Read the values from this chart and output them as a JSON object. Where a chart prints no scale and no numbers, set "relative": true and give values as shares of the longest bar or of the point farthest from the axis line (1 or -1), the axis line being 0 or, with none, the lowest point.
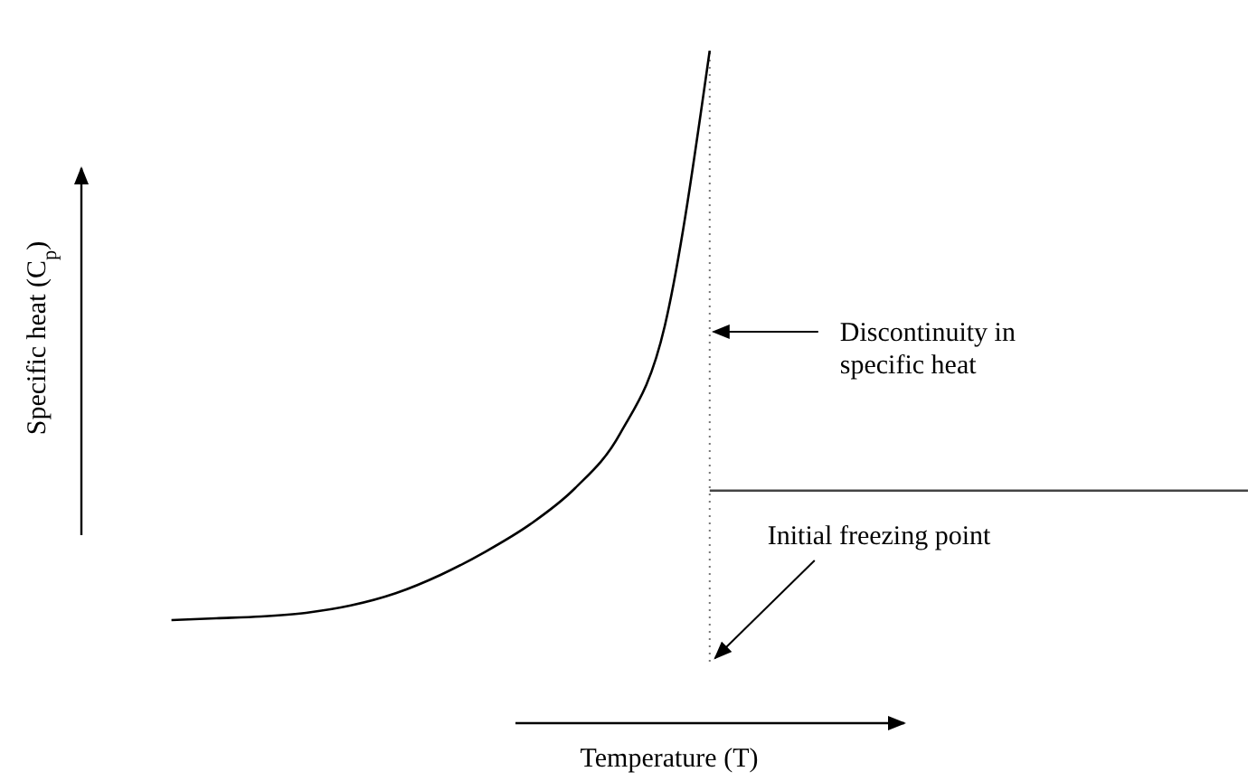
{
  "chart_data": {
    "type": "line",
    "relative": true,
    "xlabel": "Temperature (T)",
    "ylabel": "Specific heat (C$_{p}$)",
    "categories": [
      null,
      null,
      null,
      null,
      null,
      null,
      null,
      null,
      null,
      null,
      null,
      null,
      null,
      null,
      null,
      null,
      null,
      null,
      null,
      null,
      null,
      null,
      null,
      null,
      null,
      null
    ],
    "series": [
      {
        "color": "#000000",
        "values": [
          null,
          0.068,
          0.071,
          0.074,
          0.08,
          0.092,
          0.112,
          0.142,
          0.18,
          0.225,
          0.284,
          0.373,
          0.55,
          1,
          null,
          null,
          null,
          null,
          null,
          null,
          null,
          null,
          null,
          null,
          null,
          null
        ]
      },
      {
        "color": "#444444",
        "values": [
          null,
          null,
          null,
          null,
          null,
          null,
          null,
          null,
          null,
          null,
          null,
          null,
          null,
          0.28,
          0.28,
          0.28,
          0.28,
          0.28,
          0.28,
          0.28,
          0.28,
          0.28,
          0.28,
          0.28,
          0.28,
          0.28
        ]
      }
    ],
    "ref_lines": [
      {
        "axis": "x",
        "color": "#777777",
        "line_style": "dotted"
      }
    ],
    "annotations": [
      "Discontinuity in specific heat",
      "Initial freezing point"
    ],
    "marker": "none",
    "line_style": "solid"
  }
}
